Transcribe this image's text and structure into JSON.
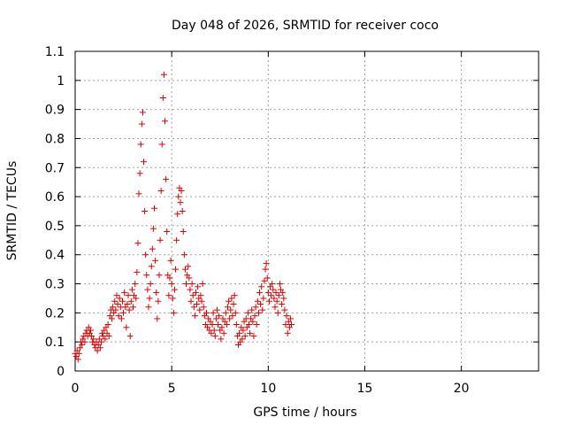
{
  "chart_data": {
    "type": "scatter",
    "title": "Day 048 of 2026, SRMTID for receiver coco",
    "xlabel": "GPS time / hours",
    "ylabel": "SRMTID / TECUs",
    "xlim": [
      0,
      24
    ],
    "ylim": [
      0,
      1.1
    ],
    "xticks": [
      0,
      5,
      10,
      15,
      20
    ],
    "xtick_labels": [
      "0",
      "5",
      "10",
      "15",
      "20"
    ],
    "yticks": [
      0,
      0.1,
      0.2,
      0.3,
      0.4,
      0.5,
      0.6,
      0.7,
      0.8,
      0.9,
      1.0,
      1.1
    ],
    "ytick_labels": [
      "0",
      "0.1",
      "0.2",
      "0.3",
      "0.4",
      "0.5",
      "0.6",
      "0.7",
      "0.8",
      "0.9",
      "1",
      "1.1"
    ],
    "grid": true,
    "marker": "+",
    "color": "#e00000",
    "series": [
      {
        "name": "SRMTID",
        "points": [
          [
            0.0,
            0.06
          ],
          [
            0.05,
            0.05
          ],
          [
            0.1,
            0.07
          ],
          [
            0.15,
            0.04
          ],
          [
            0.2,
            0.06
          ],
          [
            0.25,
            0.08
          ],
          [
            0.3,
            0.1
          ],
          [
            0.35,
            0.09
          ],
          [
            0.4,
            0.11
          ],
          [
            0.45,
            0.12
          ],
          [
            0.5,
            0.1
          ],
          [
            0.55,
            0.13
          ],
          [
            0.6,
            0.14
          ],
          [
            0.65,
            0.12
          ],
          [
            0.7,
            0.15
          ],
          [
            0.75,
            0.13
          ],
          [
            0.8,
            0.14
          ],
          [
            0.85,
            0.12
          ],
          [
            0.9,
            0.1
          ],
          [
            0.95,
            0.11
          ],
          [
            1.0,
            0.09
          ],
          [
            1.05,
            0.08
          ],
          [
            1.1,
            0.1
          ],
          [
            1.15,
            0.07
          ],
          [
            1.2,
            0.09
          ],
          [
            1.25,
            0.11
          ],
          [
            1.3,
            0.08
          ],
          [
            1.35,
            0.1
          ],
          [
            1.4,
            0.13
          ],
          [
            1.45,
            0.12
          ],
          [
            1.5,
            0.14
          ],
          [
            1.55,
            0.11
          ],
          [
            1.6,
            0.15
          ],
          [
            1.65,
            0.13
          ],
          [
            1.7,
            0.16
          ],
          [
            1.75,
            0.12
          ],
          [
            1.8,
            0.19
          ],
          [
            1.85,
            0.21
          ],
          [
            1.9,
            0.18
          ],
          [
            1.95,
            0.22
          ],
          [
            2.0,
            0.2
          ],
          [
            2.05,
            0.24
          ],
          [
            2.1,
            0.21
          ],
          [
            2.15,
            0.26
          ],
          [
            2.2,
            0.23
          ],
          [
            2.25,
            0.19
          ],
          [
            2.3,
            0.25
          ],
          [
            2.35,
            0.22
          ],
          [
            2.4,
            0.18
          ],
          [
            2.45,
            0.24
          ],
          [
            2.5,
            0.2
          ],
          [
            2.55,
            0.27
          ],
          [
            2.6,
            0.22
          ],
          [
            2.65,
            0.15
          ],
          [
            2.7,
            0.23
          ],
          [
            2.75,
            0.26
          ],
          [
            2.8,
            0.21
          ],
          [
            2.85,
            0.12
          ],
          [
            2.9,
            0.24
          ],
          [
            2.95,
            0.28
          ],
          [
            3.0,
            0.22
          ],
          [
            3.05,
            0.26
          ],
          [
            3.1,
            0.3
          ],
          [
            3.15,
            0.25
          ],
          [
            3.2,
            0.34
          ],
          [
            3.25,
            0.44
          ],
          [
            3.3,
            0.61
          ],
          [
            3.35,
            0.68
          ],
          [
            3.4,
            0.78
          ],
          [
            3.45,
            0.85
          ],
          [
            3.5,
            0.89
          ],
          [
            3.55,
            0.72
          ],
          [
            3.6,
            0.55
          ],
          [
            3.65,
            0.4
          ],
          [
            3.7,
            0.33
          ],
          [
            3.75,
            0.28
          ],
          [
            3.8,
            0.22
          ],
          [
            3.85,
            0.25
          ],
          [
            3.9,
            0.3
          ],
          [
            3.95,
            0.36
          ],
          [
            4.0,
            0.42
          ],
          [
            4.05,
            0.49
          ],
          [
            4.1,
            0.56
          ],
          [
            4.15,
            0.38
          ],
          [
            4.2,
            0.27
          ],
          [
            4.25,
            0.18
          ],
          [
            4.3,
            0.24
          ],
          [
            4.35,
            0.33
          ],
          [
            4.4,
            0.45
          ],
          [
            4.45,
            0.62
          ],
          [
            4.5,
            0.78
          ],
          [
            4.55,
            0.94
          ],
          [
            4.6,
            1.02
          ],
          [
            4.65,
            0.86
          ],
          [
            4.7,
            0.66
          ],
          [
            4.75,
            0.48
          ],
          [
            4.8,
            0.33
          ],
          [
            4.85,
            0.26
          ],
          [
            4.9,
            0.32
          ],
          [
            4.95,
            0.38
          ],
          [
            5.0,
            0.3
          ],
          [
            5.05,
            0.25
          ],
          [
            5.1,
            0.2
          ],
          [
            5.15,
            0.28
          ],
          [
            5.2,
            0.35
          ],
          [
            5.25,
            0.45
          ],
          [
            5.3,
            0.54
          ],
          [
            5.35,
            0.6
          ],
          [
            5.4,
            0.63
          ],
          [
            5.45,
            0.58
          ],
          [
            5.5,
            0.62
          ],
          [
            5.55,
            0.55
          ],
          [
            5.6,
            0.48
          ],
          [
            5.65,
            0.4
          ],
          [
            5.7,
            0.35
          ],
          [
            5.75,
            0.3
          ],
          [
            5.8,
            0.33
          ],
          [
            5.85,
            0.36
          ],
          [
            5.9,
            0.32
          ],
          [
            5.95,
            0.28
          ],
          [
            6.0,
            0.24
          ],
          [
            6.05,
            0.3
          ],
          [
            6.1,
            0.26
          ],
          [
            6.15,
            0.22
          ],
          [
            6.2,
            0.19
          ],
          [
            6.25,
            0.27
          ],
          [
            6.3,
            0.23
          ],
          [
            6.35,
            0.29
          ],
          [
            6.4,
            0.25
          ],
          [
            6.45,
            0.21
          ],
          [
            6.5,
            0.26
          ],
          [
            6.55,
            0.24
          ],
          [
            6.6,
            0.3
          ],
          [
            6.65,
            0.22
          ],
          [
            6.7,
            0.19
          ],
          [
            6.75,
            0.16
          ],
          [
            6.8,
            0.2
          ],
          [
            6.85,
            0.15
          ],
          [
            6.9,
            0.18
          ],
          [
            6.95,
            0.14
          ],
          [
            7.0,
            0.17
          ],
          [
            7.05,
            0.13
          ],
          [
            7.1,
            0.16
          ],
          [
            7.15,
            0.2
          ],
          [
            7.2,
            0.14
          ],
          [
            7.25,
            0.12
          ],
          [
            7.3,
            0.18
          ],
          [
            7.35,
            0.21
          ],
          [
            7.4,
            0.16
          ],
          [
            7.45,
            0.19
          ],
          [
            7.5,
            0.14
          ],
          [
            7.55,
            0.11
          ],
          [
            7.6,
            0.15
          ],
          [
            7.65,
            0.18
          ],
          [
            7.7,
            0.13
          ],
          [
            7.75,
            0.17
          ],
          [
            7.8,
            0.2
          ],
          [
            7.85,
            0.16
          ],
          [
            7.9,
            0.22
          ],
          [
            7.95,
            0.24
          ],
          [
            8.0,
            0.18
          ],
          [
            8.05,
            0.21
          ],
          [
            8.1,
            0.25
          ],
          [
            8.15,
            0.19
          ],
          [
            8.2,
            0.23
          ],
          [
            8.25,
            0.26
          ],
          [
            8.3,
            0.2
          ],
          [
            8.35,
            0.16
          ],
          [
            8.4,
            0.12
          ],
          [
            8.45,
            0.09
          ],
          [
            8.5,
            0.13
          ],
          [
            8.55,
            0.1
          ],
          [
            8.6,
            0.15
          ],
          [
            8.65,
            0.11
          ],
          [
            8.7,
            0.14
          ],
          [
            8.75,
            0.17
          ],
          [
            8.8,
            0.12
          ],
          [
            8.85,
            0.18
          ],
          [
            8.9,
            0.15
          ],
          [
            8.95,
            0.2
          ],
          [
            9.0,
            0.16
          ],
          [
            9.05,
            0.13
          ],
          [
            9.1,
            0.18
          ],
          [
            9.15,
            0.21
          ],
          [
            9.2,
            0.17
          ],
          [
            9.25,
            0.12
          ],
          [
            9.3,
            0.19
          ],
          [
            9.35,
            0.22
          ],
          [
            9.4,
            0.16
          ],
          [
            9.45,
            0.24
          ],
          [
            9.5,
            0.2
          ],
          [
            9.55,
            0.27
          ],
          [
            9.6,
            0.23
          ],
          [
            9.65,
            0.29
          ],
          [
            9.7,
            0.21
          ],
          [
            9.75,
            0.25
          ],
          [
            9.8,
            0.31
          ],
          [
            9.85,
            0.35
          ],
          [
            9.9,
            0.37
          ],
          [
            9.95,
            0.32
          ],
          [
            10.0,
            0.27
          ],
          [
            10.05,
            0.24
          ],
          [
            10.1,
            0.29
          ],
          [
            10.15,
            0.26
          ],
          [
            10.2,
            0.3
          ],
          [
            10.25,
            0.28
          ],
          [
            10.3,
            0.25
          ],
          [
            10.35,
            0.22
          ],
          [
            10.4,
            0.27
          ],
          [
            10.45,
            0.24
          ],
          [
            10.5,
            0.2
          ],
          [
            10.55,
            0.26
          ],
          [
            10.6,
            0.3
          ],
          [
            10.65,
            0.28
          ],
          [
            10.7,
            0.23
          ],
          [
            10.75,
            0.27
          ],
          [
            10.8,
            0.25
          ],
          [
            10.85,
            0.21
          ],
          [
            10.9,
            0.16
          ],
          [
            10.95,
            0.19
          ],
          [
            11.0,
            0.13
          ],
          [
            11.05,
            0.17
          ],
          [
            11.1,
            0.15
          ],
          [
            11.15,
            0.18
          ],
          [
            11.2,
            0.16
          ]
        ]
      }
    ]
  }
}
